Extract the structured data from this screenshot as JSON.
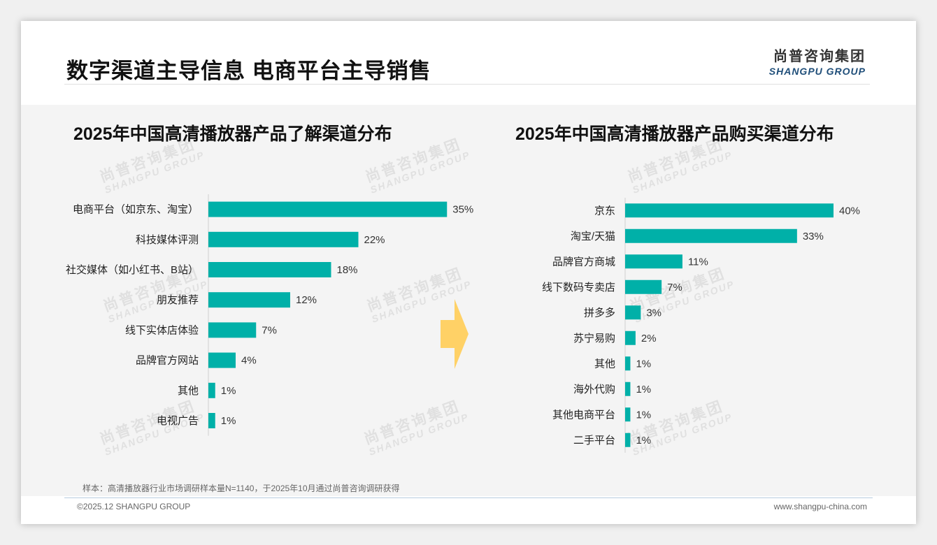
{
  "page": {
    "title": "数字渠道主导信息 电商平台主导销售",
    "logo_cn": "尚普咨询集团",
    "logo_en": "SHANGPU GROUP",
    "watermark_cn": "尚普咨询集团",
    "watermark_en": "SHANGPU GROUP",
    "sample_note": "样本：高清播放器行业市场调研样本量N=1140，于2025年10月通过尚普咨询调研获得",
    "copyright": "©2025.12 SHANGPU GROUP",
    "website": "www.shangpu-china.com",
    "bar_color": "#00b0a8",
    "arrow_color": "#ffd166"
  },
  "chart_data": [
    {
      "type": "bar",
      "orientation": "horizontal",
      "title": "2025年中国高清播放器产品了解渠道分布",
      "categories": [
        "电商平台（如京东、淘宝）",
        "科技媒体评测",
        "社交媒体（如小红书、B站）",
        "朋友推荐",
        "线下实体店体验",
        "品牌官方网站",
        "其他",
        "电视广告"
      ],
      "values": [
        35,
        22,
        18,
        12,
        7,
        4,
        1,
        1
      ],
      "value_labels": [
        "35%",
        "22%",
        "18%",
        "12%",
        "7%",
        "4%",
        "1%",
        "1%"
      ],
      "unit": "%",
      "grid": false
    },
    {
      "type": "bar",
      "orientation": "horizontal",
      "title": "2025年中国高清播放器产品购买渠道分布",
      "categories": [
        "京东",
        "淘宝/天猫",
        "品牌官方商城",
        "线下数码专卖店",
        "拼多多",
        "苏宁易购",
        "其他",
        "海外代购",
        "其他电商平台",
        "二手平台"
      ],
      "values": [
        40,
        33,
        11,
        7,
        3,
        2,
        1,
        1,
        1,
        1
      ],
      "value_labels": [
        "40%",
        "33%",
        "11%",
        "7%",
        "3%",
        "2%",
        "1%",
        "1%",
        "1%",
        "1%"
      ],
      "unit": "%",
      "grid": false
    }
  ]
}
